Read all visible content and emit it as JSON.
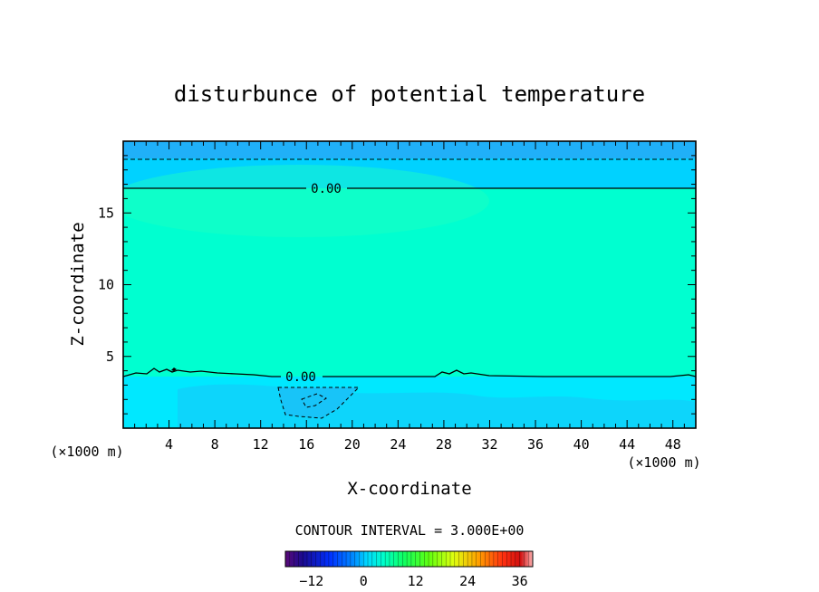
{
  "title": "disturbunce of potential temperature",
  "chart_data": {
    "type": "heatmap",
    "title": "disturbunce of potential temperature",
    "xlabel": "X-coordinate",
    "ylabel": "Z-coordinate",
    "x_unit": "(×1000 m)",
    "x_unit_right": "(×1000 m)",
    "xlim": [
      0,
      50
    ],
    "ylim": [
      0,
      20
    ],
    "x_ticks": [
      4,
      8,
      12,
      16,
      20,
      24,
      28,
      32,
      36,
      40,
      44,
      48
    ],
    "y_ticks": [
      5,
      10,
      15
    ],
    "contour_interval_text": "CONTOUR INTERVAL = 3.000E+00",
    "contour_interval": 3.0,
    "contour_labels": [
      {
        "text": "0.00",
        "x": 17.5,
        "z": 16.8,
        "level": 0.0
      },
      {
        "text": "0.00",
        "x": 15.5,
        "z": 3.6,
        "level": 0.0
      }
    ],
    "regions": [
      {
        "name": "upper-layer",
        "z_range": [
          16.8,
          20
        ],
        "value_approx": -3
      },
      {
        "name": "middle-layer",
        "z_range": [
          3.6,
          16.8
        ],
        "value_approx": 1
      },
      {
        "name": "lower-layer",
        "z_range": [
          0,
          3.6
        ],
        "value_approx": -2
      },
      {
        "name": "negative-pocket",
        "x_range": [
          13.5,
          20.5
        ],
        "z_range": [
          0.7,
          2.8
        ],
        "value_approx": -3
      }
    ],
    "colorbar": {
      "min": -18,
      "max": 39,
      "ticks": [
        -12,
        0,
        12,
        24,
        36
      ],
      "tick_labels": [
        "−12",
        "0",
        "12",
        "24",
        "36"
      ]
    }
  },
  "colors": {
    "deep_sky": "#20b0f8",
    "sky": "#00d2ff",
    "aqua": "#00ffd0",
    "aqua_light": "#20ffc0",
    "cyan": "#00e8ff",
    "pocket": "#18c4f8"
  }
}
